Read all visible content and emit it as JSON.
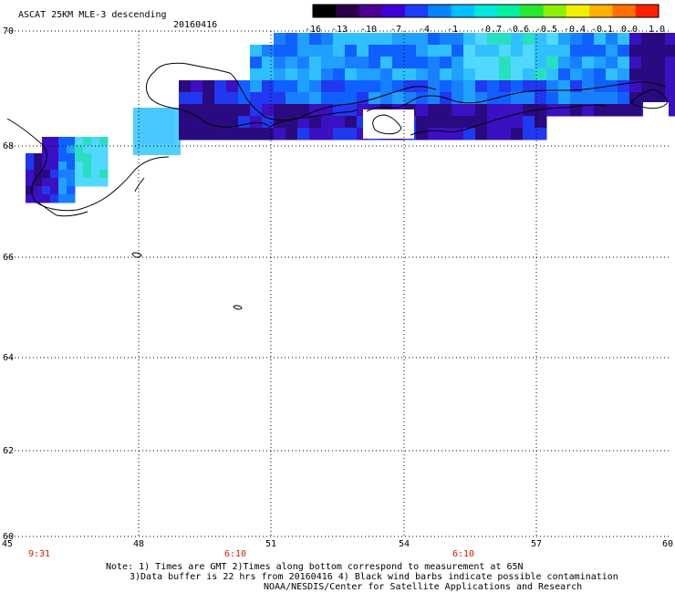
{
  "title": "ASCAT 25KM MLE-3 descending",
  "date": "20160416",
  "colorbar": {
    "labels": [
      "-16",
      "-13",
      "-10",
      "-7",
      "-4",
      "-1",
      "-0.7",
      "-0.6",
      "-0.5",
      "-0.4",
      "-0.1",
      "0.0",
      "1.0"
    ],
    "colors": [
      "#000000",
      "#2a0048",
      "#4a0090",
      "#3d00d8",
      "#1b3dff",
      "#0a82ff",
      "#00c0ff",
      "#00e8e0",
      "#00f0a0",
      "#28e830",
      "#8cf000",
      "#f0f000",
      "#ffb000",
      "#ff7000",
      "#ff2000"
    ]
  },
  "axes": {
    "lat_labels": [
      "70",
      "68",
      "66",
      "64",
      "62",
      "60"
    ],
    "lon_labels": [
      "45",
      "48",
      "51",
      "54",
      "57",
      "60"
    ]
  },
  "times": [
    "9:31",
    "6:10",
    "6:10"
  ],
  "notes": [
    "Note: 1) Times are GMT 2)Times along bottom correspond to measurement at 65N",
    "3)Data buffer is 22 hrs from 20160416 4) Black wind barbs indicate possible contamination",
    "NOAA/NESDIS/Center for Satellite Applications and Research"
  ],
  "colors": {
    "time_label": "#cc2200",
    "grid": "#000000",
    "coast": "#000000"
  }
}
